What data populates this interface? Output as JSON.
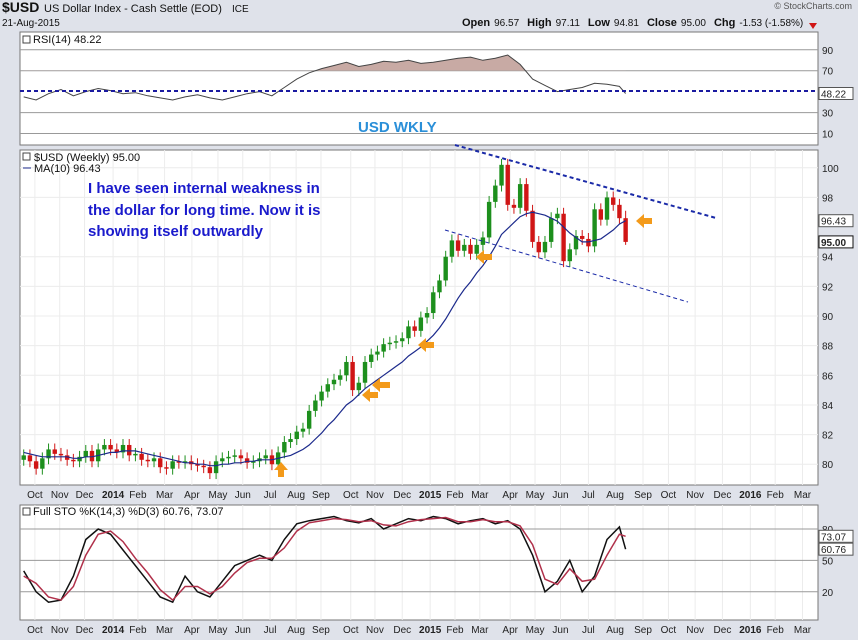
{
  "header": {
    "symbol": "$USD",
    "name": "US Dollar Index - Cash Settle (EOD)",
    "exchange": "ICE",
    "date": "21-Aug-2015",
    "copyright": "© StockCharts.com",
    "quote": [
      {
        "label": "Open",
        "value": "96.57"
      },
      {
        "label": "High",
        "value": "97.11"
      },
      {
        "label": "Low",
        "value": "94.81"
      },
      {
        "label": "Close",
        "value": "95.00"
      },
      {
        "label": "Chg",
        "value": "-1.53 (-1.58%)"
      }
    ]
  },
  "chart_data": [
    {
      "type": "line",
      "legend": "RSI(14) 48.22",
      "xlim": [
        -0.6,
        128
      ],
      "x": [
        0,
        2,
        4,
        6,
        8,
        10,
        12,
        14,
        16,
        18,
        20,
        22,
        24,
        26,
        28,
        30,
        32,
        34,
        36,
        38,
        40,
        42,
        44,
        46,
        48,
        50,
        52,
        54,
        56,
        58,
        60,
        62,
        64,
        66,
        68,
        70,
        72,
        74,
        76,
        78,
        80,
        82,
        84,
        86,
        88,
        90,
        92,
        94,
        96,
        97
      ],
      "series": [
        {
          "color": "#444444",
          "values": [
            45,
            42,
            48,
            52,
            46,
            50,
            53,
            51,
            48,
            49,
            46,
            44,
            42,
            45,
            47,
            44,
            42,
            45,
            48,
            50,
            46,
            54,
            62,
            68,
            72,
            75,
            78,
            74,
            76,
            79,
            78,
            80,
            77,
            78,
            80,
            82,
            83,
            80,
            82,
            85,
            76,
            62,
            56,
            50,
            52,
            54,
            58,
            57,
            55,
            48.22
          ]
        }
      ],
      "ylim": [
        -1,
        107
      ],
      "yticks": [
        10,
        30,
        70,
        90
      ],
      "fill_above": 70,
      "fill_color": "#c8aaa4",
      "grid": true
    },
    {
      "type": "candlestick",
      "legend": [
        "$USD (Weekly) 95.00",
        "MA(10) 96.43"
      ],
      "annotation": "USD WKLY",
      "comment": [
        "I have seen internal weakness in",
        "the dollar for  long time.  Now it is",
        "showing itself outwardly"
      ],
      "xlim": [
        -0.6,
        128
      ],
      "xticks": [
        {
          "value": 1.8,
          "label": "Oct"
        },
        {
          "value": 5.8,
          "label": "Nov"
        },
        {
          "value": 9.8,
          "label": "Dec"
        },
        {
          "value": 14.4,
          "label": "2014"
        },
        {
          "value": 18.4,
          "label": "Feb"
        },
        {
          "value": 22.7,
          "label": "Mar"
        },
        {
          "value": 27.1,
          "label": "Apr"
        },
        {
          "value": 31.3,
          "label": "May"
        },
        {
          "value": 35.3,
          "label": "Jun"
        },
        {
          "value": 39.7,
          "label": "Jul"
        },
        {
          "value": 43.9,
          "label": "Aug"
        },
        {
          "value": 47.9,
          "label": "Sep"
        },
        {
          "value": 52.7,
          "label": "Oct"
        },
        {
          "value": 56.6,
          "label": "Nov"
        },
        {
          "value": 61,
          "label": "Dec"
        },
        {
          "value": 65.5,
          "label": "2015"
        },
        {
          "value": 69.5,
          "label": "Feb"
        },
        {
          "value": 73.5,
          "label": "Mar"
        },
        {
          "value": 78.4,
          "label": "Apr"
        },
        {
          "value": 82.4,
          "label": "May"
        },
        {
          "value": 86.5,
          "label": "Jun"
        },
        {
          "value": 91,
          "label": "Jul"
        },
        {
          "value": 95.3,
          "label": "Aug"
        },
        {
          "value": 99.8,
          "label": "Sep"
        },
        {
          "value": 103.9,
          "label": "Oct"
        },
        {
          "value": 108.2,
          "label": "Nov"
        },
        {
          "value": 112.6,
          "label": "Dec"
        },
        {
          "value": 117.1,
          "label": "2016"
        },
        {
          "value": 121.1,
          "label": "Feb"
        },
        {
          "value": 125.5,
          "label": "Mar"
        }
      ],
      "candles": {
        "open": [
          80.3,
          80.6,
          80.2,
          79.7,
          80.4,
          81.0,
          80.7,
          80.6,
          80.3,
          80.2,
          80.5,
          80.9,
          80.2,
          81.0,
          81.3,
          81.0,
          80.8,
          81.3,
          80.6,
          80.7,
          80.3,
          80.2,
          80.4,
          79.8,
          79.7,
          80.2,
          80.1,
          80.2,
          80.0,
          79.9,
          79.8,
          79.4,
          80.2,
          80.4,
          80.5,
          80.6,
          80.4,
          80.1,
          80.2,
          80.4,
          80.6,
          80.0,
          80.8,
          81.5,
          81.7,
          82.2,
          82.4,
          83.6,
          84.3,
          84.9,
          85.4,
          85.7,
          86.0,
          86.9,
          85.0,
          85.5,
          86.9,
          87.4,
          87.6,
          88.1,
          88.2,
          88.3,
          88.5,
          89.3,
          89.0,
          89.9,
          90.2,
          91.6,
          92.4,
          94.0,
          95.1,
          94.4,
          94.8,
          94.2,
          94.8,
          95.3,
          97.7,
          98.8,
          100.2,
          97.5,
          97.3,
          98.9,
          97.1,
          95.0,
          94.3,
          95.0,
          96.6,
          96.9,
          93.7,
          94.5,
          95.4,
          95.2,
          94.7,
          97.2,
          96.5,
          98.0,
          97.5,
          96.6
        ],
        "high": [
          81.0,
          81.0,
          80.6,
          80.8,
          81.4,
          81.4,
          81.1,
          81.0,
          80.7,
          80.9,
          81.3,
          81.3,
          81.4,
          81.7,
          81.7,
          81.4,
          81.7,
          81.7,
          81.1,
          81.1,
          80.7,
          80.8,
          80.8,
          80.2,
          80.6,
          80.6,
          80.6,
          80.6,
          80.4,
          80.3,
          80.2,
          80.6,
          80.8,
          80.9,
          81.0,
          81.0,
          80.8,
          80.6,
          80.8,
          81.0,
          81.0,
          81.2,
          81.9,
          82.1,
          82.6,
          82.8,
          84.0,
          84.7,
          85.3,
          85.8,
          86.1,
          86.4,
          87.3,
          87.3,
          85.9,
          87.3,
          87.8,
          88.0,
          88.5,
          88.6,
          88.7,
          88.9,
          89.7,
          89.7,
          90.3,
          90.6,
          92.0,
          92.8,
          94.4,
          95.5,
          95.5,
          95.2,
          95.2,
          95.2,
          95.7,
          98.1,
          99.2,
          100.6,
          100.6,
          97.9,
          99.3,
          99.3,
          97.5,
          95.4,
          95.4,
          97.0,
          97.3,
          97.3,
          94.9,
          95.8,
          95.8,
          95.6,
          97.6,
          97.6,
          98.4,
          98.4,
          97.9,
          97.1
        ],
        "low": [
          79.9,
          79.8,
          79.3,
          79.3,
          80.0,
          80.3,
          80.2,
          79.9,
          79.8,
          79.8,
          80.1,
          79.8,
          79.8,
          80.6,
          80.6,
          80.4,
          80.4,
          80.2,
          80.2,
          79.9,
          79.8,
          79.8,
          79.4,
          79.3,
          79.3,
          79.7,
          79.7,
          79.6,
          79.5,
          79.4,
          79.0,
          79.0,
          79.8,
          80.0,
          80.1,
          80.0,
          79.7,
          79.7,
          79.8,
          80.0,
          79.6,
          79.6,
          80.4,
          81.1,
          81.3,
          81.8,
          82.0,
          83.2,
          83.9,
          84.5,
          85.0,
          85.3,
          85.6,
          84.6,
          84.6,
          85.1,
          86.5,
          87.0,
          87.2,
          87.7,
          87.8,
          87.9,
          88.1,
          88.6,
          88.6,
          89.5,
          89.8,
          91.2,
          92.0,
          93.6,
          94.0,
          94.0,
          93.8,
          93.8,
          94.4,
          94.9,
          97.3,
          98.4,
          97.1,
          96.9,
          96.9,
          96.7,
          94.6,
          93.9,
          93.9,
          94.6,
          96.2,
          93.3,
          93.3,
          94.1,
          94.8,
          94.3,
          94.3,
          96.1,
          96.1,
          97.1,
          96.2,
          94.8
        ],
        "close": [
          80.6,
          80.2,
          79.7,
          80.4,
          81.0,
          80.7,
          80.6,
          80.3,
          80.2,
          80.5,
          80.9,
          80.2,
          81.0,
          81.3,
          81.0,
          80.8,
          81.3,
          80.6,
          80.7,
          80.3,
          80.2,
          80.4,
          79.8,
          79.7,
          80.2,
          80.1,
          80.2,
          80.0,
          79.9,
          79.8,
          79.4,
          80.2,
          80.4,
          80.5,
          80.6,
          80.4,
          80.1,
          80.2,
          80.4,
          80.6,
          80.0,
          80.8,
          81.5,
          81.7,
          82.2,
          82.4,
          83.6,
          84.3,
          84.9,
          85.4,
          85.7,
          86.0,
          86.9,
          85.0,
          85.5,
          86.9,
          87.4,
          87.6,
          88.1,
          88.2,
          88.3,
          88.5,
          89.3,
          89.0,
          89.9,
          90.2,
          91.6,
          92.4,
          94.0,
          95.1,
          94.4,
          94.8,
          94.2,
          94.8,
          95.3,
          97.7,
          98.8,
          100.2,
          97.5,
          97.3,
          98.9,
          97.1,
          95.0,
          94.3,
          95.0,
          96.6,
          96.9,
          93.7,
          94.5,
          95.4,
          95.2,
          94.7,
          97.2,
          96.5,
          98.0,
          97.5,
          96.6,
          95.0
        ],
        "last_close_label": "95.00",
        "up_color": "#1d8f1d",
        "down_color": "#d01515"
      },
      "series": [
        {
          "color": "#1c2a8c",
          "values": [
            80.8,
            80.7,
            80.6,
            80.5,
            80.5,
            80.5,
            80.5,
            80.5,
            80.4,
            80.4,
            80.5,
            80.5,
            80.6,
            80.7,
            80.8,
            80.8,
            80.9,
            80.9,
            80.9,
            80.8,
            80.7,
            80.6,
            80.5,
            80.4,
            80.3,
            80.2,
            80.1,
            80.1,
            80.0,
            80.0,
            79.9,
            79.9,
            80.0,
            80.0,
            80.1,
            80.1,
            80.2,
            80.2,
            80.3,
            80.3,
            80.3,
            80.4,
            80.5,
            80.6,
            80.8,
            81.0,
            81.3,
            81.7,
            82.1,
            82.6,
            83.0,
            83.5,
            84.0,
            84.3,
            84.7,
            85.1,
            85.4,
            85.7,
            86.0,
            86.3,
            86.6,
            86.9,
            87.3,
            87.6,
            87.9,
            88.3,
            88.7,
            89.2,
            89.8,
            90.5,
            91.2,
            91.8,
            92.3,
            92.9,
            93.4,
            94.0,
            94.7,
            95.5,
            95.9,
            96.3,
            96.7,
            96.9,
            97.0,
            96.9,
            96.8,
            96.6,
            96.4,
            96.0,
            95.6,
            95.3,
            95.0,
            95.0,
            95.1,
            95.2,
            95.5,
            95.8,
            96.2,
            96.43
          ]
        }
      ],
      "ylim": [
        78.6,
        101.2
      ],
      "yticks": [
        80,
        82,
        84,
        86,
        88,
        90,
        92,
        94,
        98,
        100
      ],
      "grid": true
    },
    {
      "type": "line",
      "legend": "Full STO %K(14,3) %D(3) 60.76, 73.07",
      "xlim": [
        -0.6,
        128
      ],
      "xticks": [
        {
          "value": 1.8,
          "label": "Oct"
        },
        {
          "value": 5.8,
          "label": "Nov"
        },
        {
          "value": 9.8,
          "label": "Dec"
        },
        {
          "value": 14.4,
          "label": "2014"
        },
        {
          "value": 18.4,
          "label": "Feb"
        },
        {
          "value": 22.7,
          "label": "Mar"
        },
        {
          "value": 27.1,
          "label": "Apr"
        },
        {
          "value": 31.3,
          "label": "May"
        },
        {
          "value": 35.3,
          "label": "Jun"
        },
        {
          "value": 39.7,
          "label": "Jul"
        },
        {
          "value": 43.9,
          "label": "Aug"
        },
        {
          "value": 47.9,
          "label": "Sep"
        },
        {
          "value": 52.7,
          "label": "Oct"
        },
        {
          "value": 56.6,
          "label": "Nov"
        },
        {
          "value": 61,
          "label": "Dec"
        },
        {
          "value": 65.5,
          "label": "2015"
        },
        {
          "value": 69.5,
          "label": "Feb"
        },
        {
          "value": 73.5,
          "label": "Mar"
        },
        {
          "value": 78.4,
          "label": "Apr"
        },
        {
          "value": 82.4,
          "label": "May"
        },
        {
          "value": 86.5,
          "label": "Jun"
        },
        {
          "value": 91,
          "label": "Jul"
        },
        {
          "value": 95.3,
          "label": "Aug"
        },
        {
          "value": 99.8,
          "label": "Sep"
        },
        {
          "value": 103.9,
          "label": "Oct"
        },
        {
          "value": 108.2,
          "label": "Nov"
        },
        {
          "value": 112.6,
          "label": "Dec"
        },
        {
          "value": 117.1,
          "label": "2016"
        },
        {
          "value": 121.1,
          "label": "Feb"
        },
        {
          "value": 125.5,
          "label": "Mar"
        }
      ],
      "x": [
        0,
        2,
        4,
        6,
        8,
        10,
        12,
        14,
        16,
        18,
        20,
        22,
        24,
        26,
        28,
        30,
        32,
        34,
        36,
        38,
        40,
        42,
        44,
        46,
        48,
        50,
        52,
        54,
        56,
        58,
        60,
        62,
        64,
        66,
        68,
        70,
        72,
        74,
        76,
        78,
        80,
        82,
        84,
        86,
        88,
        90,
        92,
        94,
        96,
        97
      ],
      "series": [
        {
          "color": "#111111",
          "values": [
            40,
            20,
            10,
            12,
            35,
            70,
            80,
            75,
            60,
            45,
            30,
            15,
            10,
            35,
            20,
            15,
            30,
            45,
            50,
            55,
            50,
            70,
            85,
            88,
            90,
            92,
            88,
            86,
            90,
            80,
            85,
            90,
            88,
            92,
            90,
            85,
            88,
            90,
            85,
            88,
            80,
            55,
            20,
            30,
            50,
            20,
            35,
            70,
            82,
            60.76
          ]
        },
        {
          "color": "#b0304a",
          "values": [
            35,
            28,
            15,
            12,
            25,
            55,
            75,
            78,
            68,
            52,
            38,
            22,
            12,
            25,
            25,
            18,
            25,
            38,
            48,
            52,
            52,
            62,
            78,
            86,
            88,
            90,
            89,
            87,
            88,
            84,
            83,
            87,
            89,
            90,
            91,
            87,
            87,
            89,
            87,
            87,
            83,
            65,
            32,
            27,
            42,
            30,
            32,
            55,
            75,
            73.07
          ]
        }
      ],
      "ylim": [
        -7,
        103
      ],
      "yticks": [
        20,
        50,
        80
      ],
      "grid": true
    }
  ]
}
